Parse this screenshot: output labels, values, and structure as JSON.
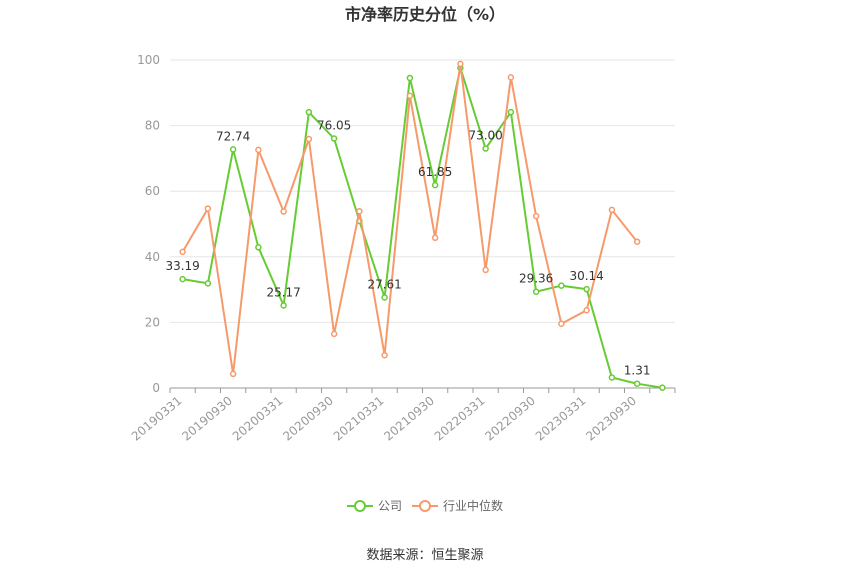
{
  "chart_data": {
    "type": "line",
    "title": "市净率历史分位（%）",
    "xlabel": "",
    "ylabel": "",
    "ylim": [
      0,
      100
    ],
    "yticks": [
      0,
      20,
      40,
      60,
      80,
      100
    ],
    "grid": true,
    "legend_position": "bottom",
    "x": [
      "20190331",
      "20190630",
      "20190930",
      "20191231",
      "20200331",
      "20200630",
      "20200930",
      "20201231",
      "20210331",
      "20210630",
      "20210930",
      "20211231",
      "20220331",
      "20220630",
      "20220930",
      "20221231",
      "20230331",
      "20230630",
      "20230930",
      "20231231"
    ],
    "x_tick_labels": [
      "20190331",
      "20190930",
      "20200331",
      "20200930",
      "20210331",
      "20210930",
      "20220331",
      "20220930",
      "20230331",
      "20230930"
    ],
    "series": [
      {
        "name": "公司",
        "color": "#66cc33",
        "values": [
          33.19,
          31.9,
          72.74,
          42.9,
          25.17,
          84.1,
          76.05,
          50.9,
          27.61,
          94.5,
          61.85,
          97.6,
          73.0,
          84.1,
          29.36,
          31.2,
          30.14,
          3.2,
          1.31,
          0.1
        ]
      },
      {
        "name": "行业中位数",
        "color": "#f79a6b",
        "values": [
          41.5,
          54.7,
          4.3,
          72.6,
          53.8,
          75.9,
          16.5,
          53.9,
          10.0,
          89.1,
          45.8,
          98.8,
          36.0,
          94.7,
          52.4,
          19.6,
          23.7,
          54.3,
          44.6,
          null
        ]
      }
    ],
    "data_labels": [
      {
        "series": 0,
        "index": 0,
        "text": "33.19"
      },
      {
        "series": 0,
        "index": 2,
        "text": "72.74"
      },
      {
        "series": 0,
        "index": 4,
        "text": "25.17"
      },
      {
        "series": 0,
        "index": 6,
        "text": "76.05"
      },
      {
        "series": 0,
        "index": 8,
        "text": "27.61"
      },
      {
        "series": 0,
        "index": 10,
        "text": "61.85"
      },
      {
        "series": 0,
        "index": 12,
        "text": "73.00"
      },
      {
        "series": 0,
        "index": 14,
        "text": "29.36"
      },
      {
        "series": 0,
        "index": 16,
        "text": "30.14"
      },
      {
        "series": 0,
        "index": 18,
        "text": "1.31"
      }
    ]
  },
  "footer": {
    "source": "数据来源：恒生聚源"
  }
}
